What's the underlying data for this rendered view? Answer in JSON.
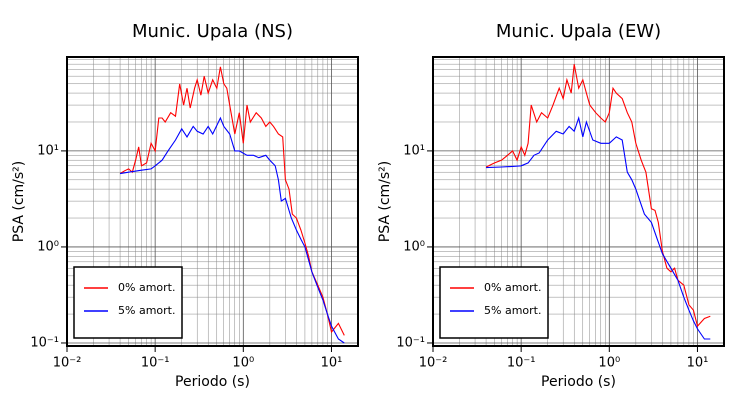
{
  "chart_data": [
    {
      "type": "line",
      "title": "Munic. Upala (NS)",
      "x_label": "Periodo (s)",
      "y_label": "PSA (cm/s²)",
      "x_log": true,
      "y_log": true,
      "grid": true,
      "minor_grid": true,
      "legend": "lower left",
      "xlim": [
        0.01,
        20
      ],
      "ylim": [
        0.093,
        95
      ],
      "xticks": [
        {
          "value": 0.01,
          "label": "10⁻²"
        },
        {
          "value": 0.1,
          "label": "10⁻¹"
        },
        {
          "value": 1,
          "label": "10⁰"
        },
        {
          "value": 10,
          "label": "10¹"
        }
      ],
      "yticks": [
        {
          "value": 0.1,
          "label": "10⁻¹"
        },
        {
          "value": 1,
          "label": "10⁰"
        },
        {
          "value": 10,
          "label": "10¹"
        }
      ],
      "series": [
        {
          "name": "0% amort.",
          "color": "#ff0000",
          "x": [
            0.04,
            0.045,
            0.05,
            0.055,
            0.06,
            0.065,
            0.07,
            0.08,
            0.09,
            0.1,
            0.11,
            0.12,
            0.13,
            0.15,
            0.17,
            0.19,
            0.21,
            0.23,
            0.25,
            0.28,
            0.3,
            0.33,
            0.36,
            0.4,
            0.45,
            0.5,
            0.55,
            0.6,
            0.65,
            0.7,
            0.8,
            0.9,
            1.0,
            1.1,
            1.2,
            1.4,
            1.6,
            1.8,
            2.0,
            2.2,
            2.5,
            2.8,
            3.0,
            3.3,
            3.6,
            4.0,
            4.5,
            5.0,
            5.5,
            6.0,
            7.0,
            8.0,
            9.0,
            10,
            12,
            14
          ],
          "values": [
            5.8,
            6.2,
            6.5,
            6.0,
            8,
            11,
            7,
            7.5,
            12,
            10,
            22,
            22,
            20,
            25,
            23,
            50,
            30,
            45,
            28,
            45,
            55,
            38,
            60,
            40,
            55,
            45,
            75,
            50,
            45,
            30,
            15,
            25,
            12,
            30,
            20,
            25,
            22,
            18,
            20,
            18,
            15,
            14,
            5,
            4,
            2.2,
            2.0,
            1.5,
            1.1,
            0.8,
            0.55,
            0.4,
            0.3,
            0.2,
            0.13,
            0.16,
            0.12
          ]
        },
        {
          "name": "5% amort.",
          "color": "#0000ff",
          "x": [
            0.04,
            0.05,
            0.07,
            0.09,
            0.1,
            0.12,
            0.14,
            0.17,
            0.2,
            0.23,
            0.27,
            0.3,
            0.35,
            0.4,
            0.45,
            0.55,
            0.6,
            0.7,
            0.8,
            0.9,
            1.1,
            1.3,
            1.5,
            1.8,
            2.0,
            2.3,
            2.5,
            2.7,
            3.0,
            3.5,
            4.0,
            4.5,
            5.0,
            6.0,
            7,
            8,
            9,
            10,
            12,
            14
          ],
          "values": [
            5.8,
            6.0,
            6.3,
            6.5,
            7,
            8,
            10,
            13,
            17,
            14,
            18,
            16,
            15,
            18,
            15,
            22,
            18,
            15,
            10,
            10,
            9,
            9,
            8.5,
            9,
            8,
            7,
            5,
            3.0,
            3.2,
            2.0,
            1.5,
            1.2,
            1.0,
            0.55,
            0.38,
            0.28,
            0.2,
            0.15,
            0.11,
            0.1
          ]
        }
      ]
    },
    {
      "type": "line",
      "title": "Munic. Upala (EW)",
      "x_label": "Periodo (s)",
      "y_label": "PSA (cm/s²)",
      "x_log": true,
      "y_log": true,
      "grid": true,
      "minor_grid": true,
      "legend": "lower left",
      "xlim": [
        0.01,
        20
      ],
      "ylim": [
        0.093,
        95
      ],
      "xticks": [
        {
          "value": 0.01,
          "label": "10⁻²"
        },
        {
          "value": 0.1,
          "label": "10⁻¹"
        },
        {
          "value": 1,
          "label": "10⁰"
        },
        {
          "value": 10,
          "label": "10¹"
        }
      ],
      "yticks": [
        {
          "value": 0.1,
          "label": "10⁻¹"
        },
        {
          "value": 1,
          "label": "10⁰"
        },
        {
          "value": 10,
          "label": "10¹"
        }
      ],
      "series": [
        {
          "name": "0% amort.",
          "color": "#ff0000",
          "x": [
            0.04,
            0.05,
            0.06,
            0.07,
            0.08,
            0.09,
            0.1,
            0.11,
            0.12,
            0.13,
            0.15,
            0.17,
            0.2,
            0.23,
            0.27,
            0.3,
            0.33,
            0.37,
            0.4,
            0.45,
            0.5,
            0.55,
            0.6,
            0.7,
            0.8,
            0.9,
            1.0,
            1.1,
            1.2,
            1.4,
            1.6,
            1.8,
            2.0,
            2.3,
            2.6,
            3.0,
            3.3,
            3.6,
            4.0,
            4.5,
            5.0,
            5.5,
            6.0,
            7.0,
            8,
            9,
            10,
            12,
            14
          ],
          "values": [
            6.8,
            7.5,
            8,
            9,
            10,
            8,
            11,
            9,
            12,
            30,
            20,
            25,
            22,
            30,
            45,
            35,
            55,
            40,
            80,
            45,
            55,
            40,
            30,
            25,
            22,
            20,
            25,
            45,
            40,
            35,
            25,
            20,
            12,
            8,
            6,
            2.5,
            2.4,
            1.8,
            0.9,
            0.6,
            0.55,
            0.6,
            0.45,
            0.4,
            0.25,
            0.22,
            0.15,
            0.18,
            0.19
          ]
        },
        {
          "name": "5% amort.",
          "color": "#0000ff",
          "x": [
            0.04,
            0.06,
            0.08,
            0.1,
            0.12,
            0.14,
            0.16,
            0.2,
            0.25,
            0.3,
            0.35,
            0.4,
            0.45,
            0.5,
            0.55,
            0.65,
            0.8,
            1.0,
            1.2,
            1.4,
            1.6,
            1.8,
            2.0,
            2.5,
            3.0,
            3.5,
            4.0,
            5,
            6,
            7,
            8,
            9,
            10,
            12,
            14
          ],
          "values": [
            6.7,
            6.8,
            6.9,
            7.0,
            7.5,
            9,
            9.5,
            13,
            16,
            15,
            18,
            16,
            22,
            14,
            20,
            13,
            12,
            12,
            14,
            13,
            6,
            5,
            4,
            2.2,
            1.8,
            1.2,
            0.85,
            0.6,
            0.45,
            0.3,
            0.22,
            0.17,
            0.14,
            0.11,
            0.11
          ]
        }
      ]
    }
  ]
}
